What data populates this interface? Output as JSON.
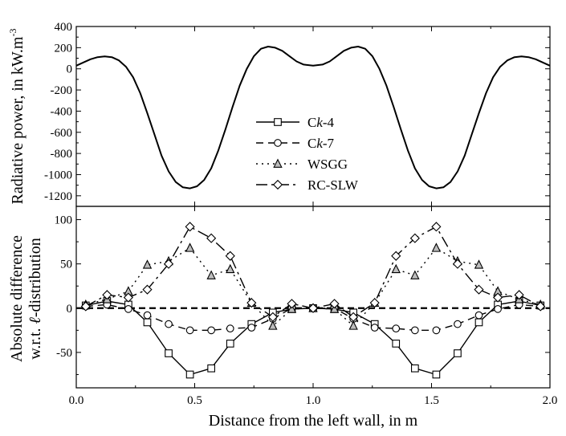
{
  "chart_data": [
    {
      "type": "line",
      "panel": "top",
      "ylabel": "Radiative power, in kW.m",
      "ylabel_superscript": "-3",
      "xlim": [
        0,
        2.0
      ],
      "ylim": [
        -1300,
        400
      ],
      "yticks": [
        400,
        200,
        0,
        -200,
        -400,
        -600,
        -800,
        -1000,
        -1200
      ],
      "grid": false,
      "legend_position": "center",
      "series": [
        {
          "style": "solid",
          "x": [
            0.0,
            0.03,
            0.06,
            0.09,
            0.12,
            0.15,
            0.18,
            0.21,
            0.24,
            0.27,
            0.3,
            0.33,
            0.36,
            0.39,
            0.42,
            0.45,
            0.48,
            0.51,
            0.54,
            0.57,
            0.6,
            0.63,
            0.66,
            0.69,
            0.72,
            0.75,
            0.78,
            0.81,
            0.84,
            0.87,
            0.9,
            0.93,
            0.96,
            1.0,
            1.04,
            1.07,
            1.1,
            1.13,
            1.16,
            1.19,
            1.22,
            1.25,
            1.28,
            1.31,
            1.34,
            1.37,
            1.4,
            1.43,
            1.46,
            1.49,
            1.52,
            1.55,
            1.58,
            1.61,
            1.64,
            1.67,
            1.7,
            1.73,
            1.76,
            1.79,
            1.82,
            1.85,
            1.88,
            1.91,
            1.94,
            1.97,
            2.0
          ],
          "values": [
            30,
            60,
            90,
            110,
            118,
            110,
            80,
            20,
            -80,
            -230,
            -420,
            -620,
            -820,
            -970,
            -1070,
            -1120,
            -1130,
            -1110,
            -1050,
            -940,
            -770,
            -570,
            -360,
            -160,
            0,
            120,
            190,
            210,
            200,
            170,
            120,
            70,
            40,
            30,
            40,
            70,
            120,
            170,
            200,
            210,
            190,
            120,
            0,
            -160,
            -360,
            -570,
            -770,
            -940,
            -1050,
            -1110,
            -1130,
            -1120,
            -1070,
            -970,
            -820,
            -620,
            -420,
            -230,
            -80,
            20,
            80,
            110,
            118,
            110,
            90,
            60,
            30
          ]
        }
      ]
    },
    {
      "type": "line",
      "panel": "bottom",
      "ylabel_line1": "Absolute difference",
      "ylabel_line2_prefix": "w.r.t. ",
      "ylabel_line2_italic": "ℓ",
      "ylabel_line2_suffix": "-distribution",
      "xlabel": "Distance from the left wall, in m",
      "xlim": [
        0,
        2.0
      ],
      "xticks": [
        "0.0",
        "0.5",
        "1.0",
        "1.5",
        "2.0"
      ],
      "ylim": [
        -90,
        115
      ],
      "yticks": [
        100,
        50,
        0,
        -50
      ],
      "grid": false,
      "x": [
        0.04,
        0.13,
        0.22,
        0.3,
        0.39,
        0.48,
        0.57,
        0.65,
        0.74,
        0.83,
        0.91,
        1.0,
        1.09,
        1.17,
        1.26,
        1.35,
        1.43,
        1.52,
        1.61,
        1.7,
        1.78,
        1.87,
        1.96
      ],
      "series": [
        {
          "name": "Ck-4",
          "name_prefix": "C",
          "name_italic": "k",
          "name_suffix": "-4",
          "marker": "square",
          "dash": "",
          "values": [
            3,
            8,
            4,
            -16,
            -51,
            -75,
            -68,
            -40,
            -18,
            -5,
            -1,
            0,
            -1,
            -5,
            -18,
            -40,
            -68,
            -75,
            -51,
            -16,
            4,
            8,
            3
          ]
        },
        {
          "name": "Ck-7",
          "name_prefix": "C",
          "name_italic": "k",
          "name_suffix": "-7",
          "marker": "circle",
          "dash": "9 6",
          "values": [
            2,
            4,
            -1,
            -8,
            -18,
            -25,
            -25,
            -23,
            -22,
            -12,
            0,
            0,
            0,
            -12,
            -22,
            -23,
            -25,
            -25,
            -18,
            -8,
            -1,
            4,
            2
          ]
        },
        {
          "name": "WSGG",
          "marker": "triangle",
          "dash": "2 5",
          "values": [
            4,
            10,
            19,
            49,
            53,
            68,
            37,
            44,
            6,
            -20,
            -1,
            0,
            -1,
            -20,
            6,
            44,
            37,
            68,
            53,
            49,
            19,
            10,
            4
          ]
        },
        {
          "name": "RC-SLW",
          "marker": "diamond",
          "dash": "14 5 3 5",
          "values": [
            2,
            15,
            12,
            21,
            50,
            92,
            79,
            59,
            6,
            -10,
            5,
            0,
            5,
            -10,
            6,
            59,
            79,
            92,
            50,
            21,
            12,
            15,
            2
          ]
        }
      ],
      "reference_line": {
        "y": 0,
        "style": "dashed"
      }
    }
  ]
}
